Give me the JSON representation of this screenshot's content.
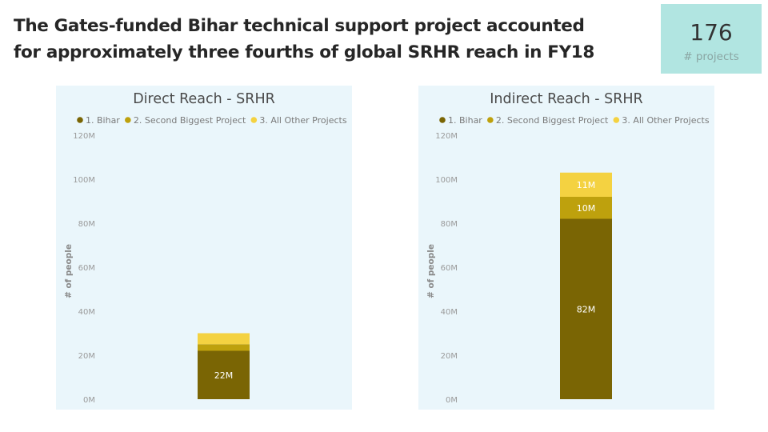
{
  "headline": {
    "line1": "The Gates-funded Bihar technical support project accounted",
    "line2": "for approximately three fourths of global SRHR reach in FY18"
  },
  "kpi": {
    "value": "176",
    "label": "# projects"
  },
  "colors": {
    "bihar": "#7a6504",
    "second": "#bea10d",
    "other": "#f4d241",
    "panel_bg": "#eaf6fb",
    "kpi_bg": "#b1e5e1"
  },
  "chart_data": [
    {
      "type": "bar",
      "stacked": true,
      "title": "Direct Reach - SRHR",
      "ylabel": "# of people",
      "xlabel": "",
      "ylim": [
        0,
        120
      ],
      "yticks": [
        "0M",
        "20M",
        "40M",
        "60M",
        "80M",
        "100M",
        "120M"
      ],
      "legend_position": "top-left",
      "grid": false,
      "series": [
        {
          "name": "1. Bihar",
          "values": [
            22
          ],
          "label": "22M"
        },
        {
          "name": "2. Second Biggest Project",
          "values": [
            3
          ],
          "label": ""
        },
        {
          "name": "3. All Other Projects",
          "values": [
            5
          ],
          "label": ""
        }
      ]
    },
    {
      "type": "bar",
      "stacked": true,
      "title": "Indirect Reach - SRHR",
      "ylabel": "# of people",
      "xlabel": "",
      "ylim": [
        0,
        120
      ],
      "yticks": [
        "0M",
        "20M",
        "40M",
        "60M",
        "80M",
        "100M",
        "120M"
      ],
      "legend_position": "top-left",
      "grid": false,
      "series": [
        {
          "name": "1. Bihar",
          "values": [
            82
          ],
          "label": "82M"
        },
        {
          "name": "2. Second Biggest Project",
          "values": [
            10
          ],
          "label": "10M"
        },
        {
          "name": "3. All Other Projects",
          "values": [
            11
          ],
          "label": "11M"
        }
      ]
    }
  ]
}
